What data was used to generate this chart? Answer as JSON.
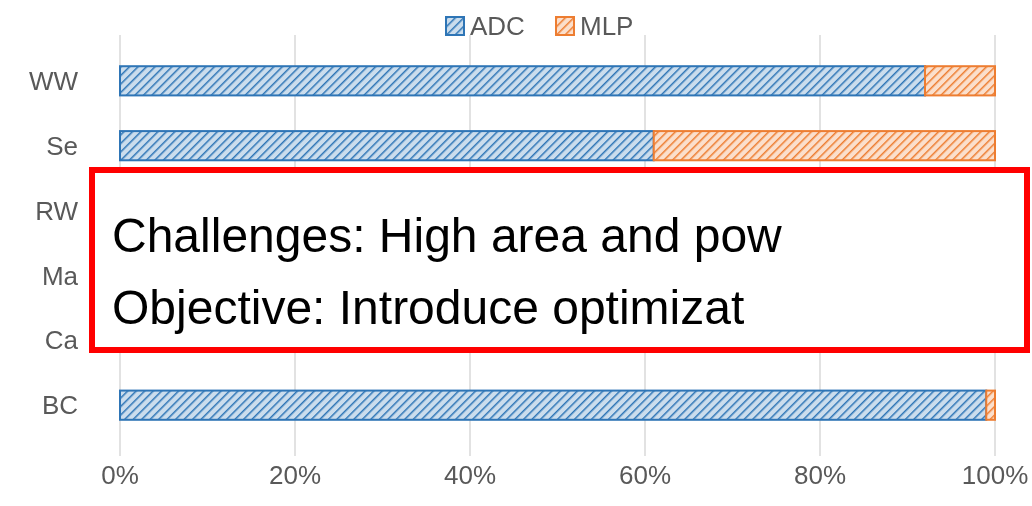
{
  "chart_data": {
    "type": "bar",
    "orientation": "horizontal",
    "stacked": true,
    "categories": [
      "WW",
      "Se",
      "RW",
      "Ma",
      "Ca",
      "BC"
    ],
    "series": [
      {
        "name": "ADC",
        "color": "#2e75b6",
        "values": [
          92,
          61,
          null,
          null,
          null,
          99
        ]
      },
      {
        "name": "MLP",
        "color": "#ed7d31",
        "values": [
          8,
          39,
          null,
          null,
          null,
          1
        ]
      }
    ],
    "xlim": [
      0,
      100
    ],
    "xticks": [
      {
        "value": 0,
        "label": "0%"
      },
      {
        "value": 20,
        "label": "20%"
      },
      {
        "value": 40,
        "label": "40%"
      },
      {
        "value": 60,
        "label": "60%"
      },
      {
        "value": 80,
        "label": "80%"
      },
      {
        "value": 100,
        "label": "100%"
      }
    ],
    "grid": "x",
    "legend": "top",
    "annotations": [
      "Challenges: High area and pow",
      "Objective: Introduce optimizat"
    ]
  }
}
